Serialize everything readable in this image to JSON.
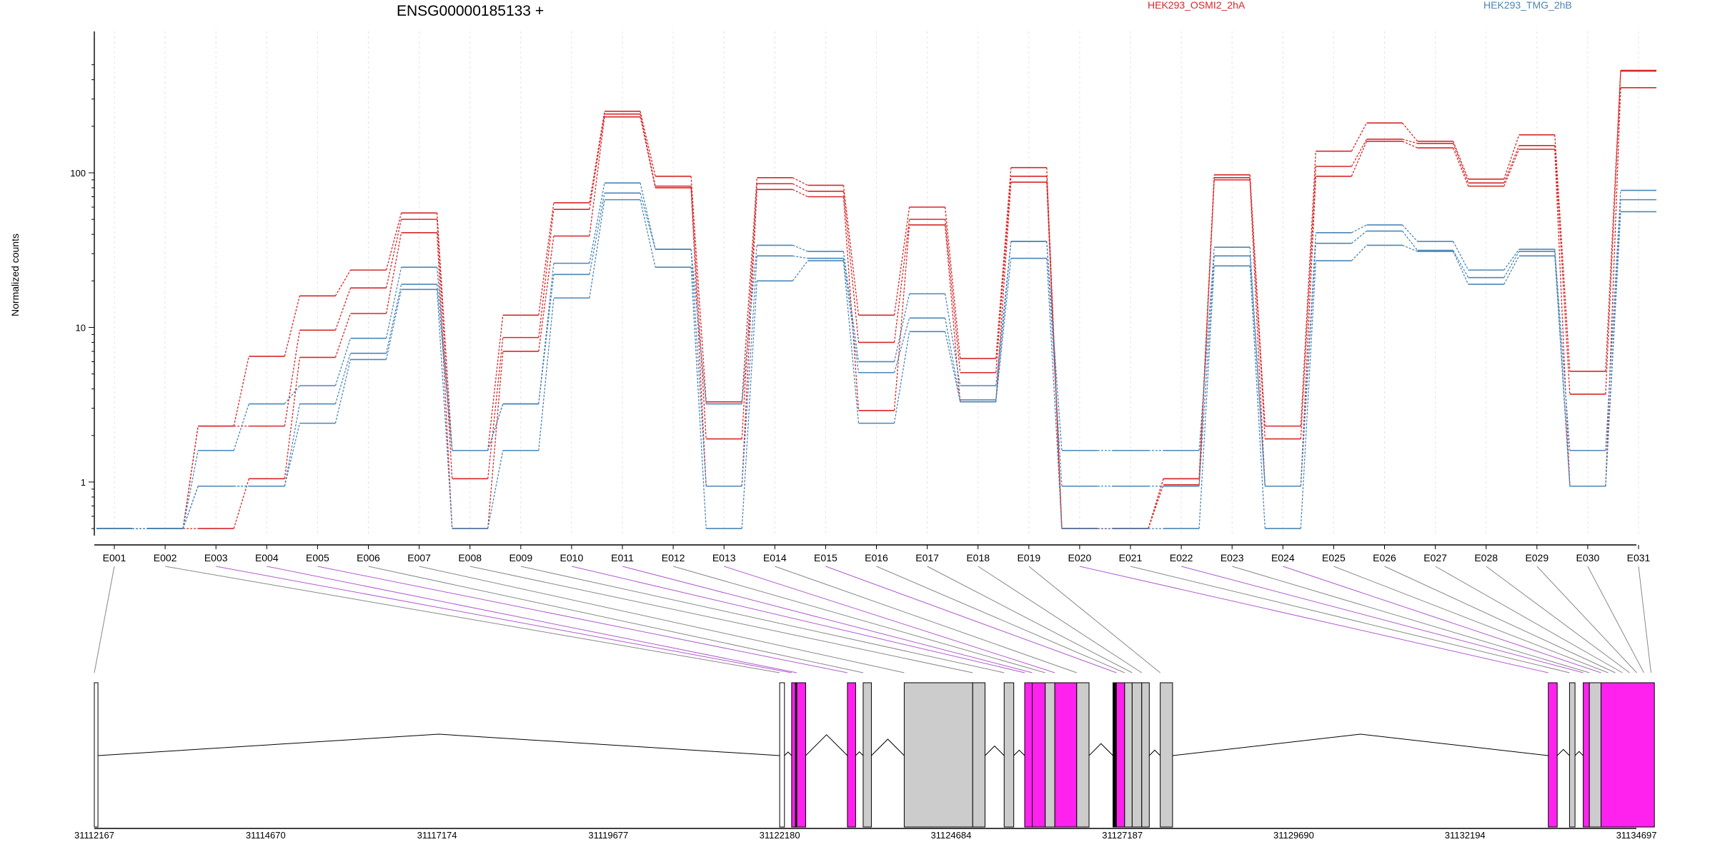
{
  "title": "ENSG00000185133 +",
  "chart_data": {
    "type": "line",
    "title": "ENSG00000185133 +",
    "ylabel": "Normalized counts",
    "xlabel": "",
    "y_scale": "log",
    "ylim": [
      0.49,
      560
    ],
    "y_ticks": [
      1,
      10,
      100
    ],
    "categories": [
      "E001",
      "E002",
      "E003",
      "E004",
      "E005",
      "E006",
      "E007",
      "E008",
      "E009",
      "E010",
      "E011",
      "E012",
      "E013",
      "E014",
      "E015",
      "E016",
      "E017",
      "E018",
      "E019",
      "E020",
      "E021",
      "E022",
      "E023",
      "E024",
      "E025",
      "E026",
      "E027",
      "E028",
      "E029",
      "E030",
      "E031"
    ],
    "series": [
      {
        "name": "HEK293_OSMI2_2hA",
        "group": "HEK293_OSMI2_2hA",
        "color": "#d62728",
        "values": [
          0.5,
          0.5,
          2.3,
          6.5,
          16,
          23.5,
          55,
          1.6,
          12,
          64,
          250,
          95,
          3.3,
          93,
          83,
          12,
          60,
          6.3,
          108,
          0.5,
          0.5,
          1.05,
          97,
          2.3,
          138,
          210,
          160,
          91,
          176,
          5.2,
          460
        ]
      },
      {
        "name": "",
        "group": "HEK293_OSMI2_2hA",
        "color": "#d62728",
        "values": [
          0.5,
          0.5,
          2.3,
          2.3,
          9.6,
          18,
          50,
          1.05,
          8.6,
          58,
          240,
          82,
          1.9,
          85,
          76,
          8,
          50,
          5.1,
          95,
          0.5,
          0.5,
          1.05,
          93,
          1.9,
          110,
          165,
          155,
          86,
          150,
          3.7,
          455
        ]
      },
      {
        "name": "",
        "group": "HEK293_OSMI2_2hA",
        "color": "#d62728",
        "values": [
          0.5,
          0.5,
          0.5,
          1.05,
          6.4,
          12.3,
          41,
          0.5,
          7,
          39,
          230,
          80,
          0.94,
          78,
          70,
          2.9,
          46,
          3.3,
          87,
          0.5,
          0.5,
          0.96,
          90,
          0.94,
          95,
          160,
          145,
          82,
          142,
          0.94,
          355
        ]
      },
      {
        "name": "HEK293_TMG_2hB",
        "group": "HEK293_TMG_2hB",
        "color": "#4a86b8",
        "values": [
          0.5,
          0.5,
          1.6,
          3.2,
          4.2,
          8.5,
          24.5,
          1.6,
          3.2,
          26,
          86,
          32,
          3.2,
          34,
          31,
          6,
          16.5,
          4.2,
          36,
          1.6,
          1.6,
          1.6,
          33,
          0.94,
          41,
          46,
          36,
          23.5,
          32,
          1.6,
          77
        ]
      },
      {
        "name": "",
        "group": "HEK293_TMG_2hB",
        "color": "#4a86b8",
        "values": [
          0.5,
          0.5,
          0.94,
          0.94,
          3.2,
          6.8,
          19,
          1.6,
          3.2,
          22,
          74,
          32,
          0.94,
          29,
          28,
          5.1,
          11.5,
          3.4,
          36,
          0.94,
          0.94,
          0.94,
          29,
          0.94,
          35,
          42,
          31.5,
          21,
          31,
          0.94,
          67
        ]
      },
      {
        "name": "",
        "group": "HEK293_TMG_2hB",
        "color": "#4a86b8",
        "values": [
          0.5,
          0.5,
          0.94,
          0.94,
          2.4,
          6.2,
          17.6,
          0.5,
          1.6,
          15.5,
          67,
          24.5,
          0.5,
          20,
          27,
          2.4,
          9.4,
          3.3,
          28,
          0.5,
          0.5,
          0.5,
          25,
          0.5,
          27,
          34,
          31,
          19,
          29,
          0.94,
          56
        ]
      }
    ],
    "legend": [
      {
        "name": "HEK293_OSMI2_2hA",
        "color": "#d62728"
      },
      {
        "name": "HEK293_TMG_2hB",
        "color": "#4a86b8"
      }
    ],
    "legend_placement": "top",
    "grid": "vertical-dashed",
    "gene_track": {
      "coordinate_ticks": [
        "31112167",
        "31114670",
        "31117174",
        "31119677",
        "31122180",
        "31124684",
        "31127187",
        "31129690",
        "31132194",
        "31134697"
      ],
      "exons": [
        {
          "start": 31112167,
          "end": 31112220,
          "color": "#ffffff"
        },
        {
          "start": 31122180,
          "end": 31122250,
          "color": "#ffffff"
        },
        {
          "start": 31122355,
          "end": 31122410,
          "color": "#ff22ee"
        },
        {
          "start": 31122410,
          "end": 31122430,
          "color": "#000000"
        },
        {
          "start": 31122430,
          "end": 31122560,
          "color": "#ff22ee"
        },
        {
          "start": 31123170,
          "end": 31123290,
          "color": "#ff22ee"
        },
        {
          "start": 31123400,
          "end": 31123520,
          "color": "#cccccc"
        },
        {
          "start": 31124000,
          "end": 31125000,
          "color": "#cccccc"
        },
        {
          "start": 31125000,
          "end": 31125180,
          "color": "#cccccc"
        },
        {
          "start": 31125460,
          "end": 31125600,
          "color": "#cccccc"
        },
        {
          "start": 31125760,
          "end": 31125870,
          "color": "#ff22ee"
        },
        {
          "start": 31125870,
          "end": 31126060,
          "color": "#ff22ee"
        },
        {
          "start": 31126060,
          "end": 31126200,
          "color": "#cccccc"
        },
        {
          "start": 31126200,
          "end": 31126520,
          "color": "#ff22ee"
        },
        {
          "start": 31126520,
          "end": 31126700,
          "color": "#cccccc"
        },
        {
          "start": 31127050,
          "end": 31127100,
          "color": "#000000"
        },
        {
          "start": 31127100,
          "end": 31127220,
          "color": "#ff22ee"
        },
        {
          "start": 31127220,
          "end": 31127330,
          "color": "#cccccc"
        },
        {
          "start": 31127330,
          "end": 31127470,
          "color": "#cccccc"
        },
        {
          "start": 31127470,
          "end": 31127580,
          "color": "#cccccc"
        },
        {
          "start": 31127740,
          "end": 31127920,
          "color": "#cccccc"
        },
        {
          "start": 31133410,
          "end": 31133540,
          "color": "#ff22ee"
        },
        {
          "start": 31133720,
          "end": 31133800,
          "color": "#cccccc"
        },
        {
          "start": 31133920,
          "end": 31134010,
          "color": "#ff22ee"
        },
        {
          "start": 31134010,
          "end": 31134180,
          "color": "#cccccc"
        },
        {
          "start": 31134180,
          "end": 31134960,
          "color": "#ff22ee"
        }
      ]
    }
  }
}
